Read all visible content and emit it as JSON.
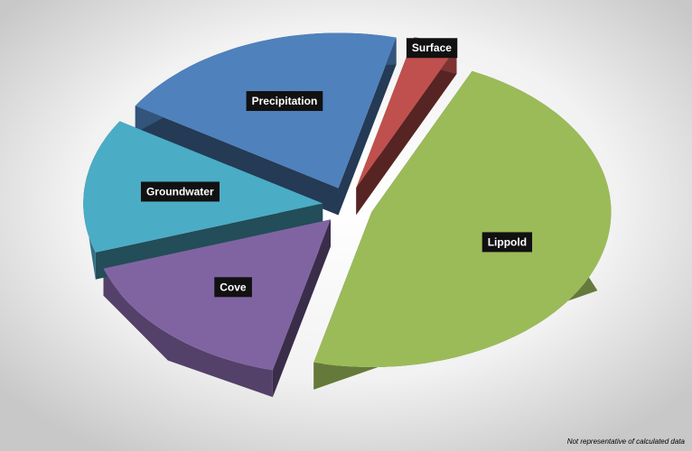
{
  "chart_data": {
    "type": "pie",
    "categories": [
      "Precipitation",
      "Surface",
      "Lippold",
      "Cove",
      "Groundwater"
    ],
    "values": [
      20,
      3,
      47,
      16,
      14
    ],
    "colors": [
      "#4f81bd",
      "#c0504d",
      "#9bbb59",
      "#8064a2",
      "#4bacc6"
    ],
    "note": "Not representative of calculated data"
  }
}
